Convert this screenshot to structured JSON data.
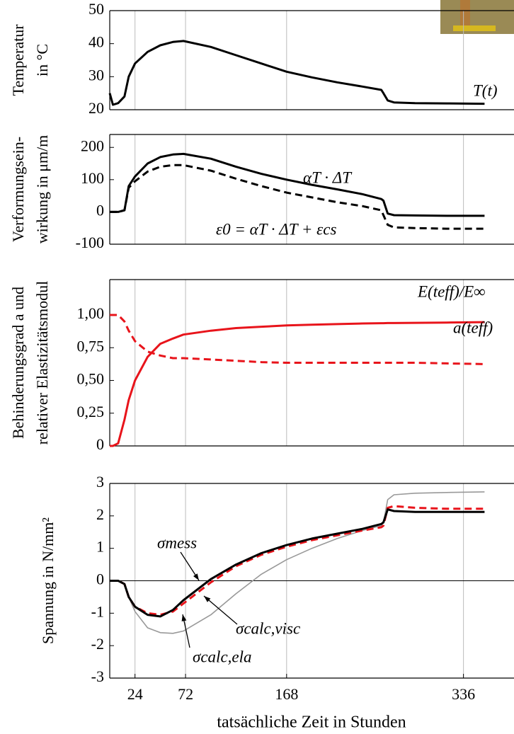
{
  "chart_data": [
    {
      "type": "line",
      "ylabel": [
        "Temperatur",
        "in °C"
      ],
      "x": [
        0,
        3,
        8,
        14,
        18,
        24,
        36,
        48,
        60,
        70,
        96,
        120,
        144,
        168,
        192,
        216,
        240,
        258,
        260,
        264,
        270,
        290,
        320,
        356
      ],
      "xlim": [
        0,
        384
      ],
      "xticks": [
        24,
        72,
        168,
        336
      ],
      "ylim": [
        20,
        50
      ],
      "yticks": [
        20,
        30,
        40,
        50
      ],
      "grid": true,
      "series": [
        {
          "name": "T(t)",
          "color": "#000000",
          "style": "solid",
          "values": [
            25,
            21.5,
            22,
            24,
            30,
            34,
            37.5,
            39.5,
            40.5,
            40.8,
            39,
            36.5,
            34,
            31.5,
            29.8,
            28.3,
            27,
            26,
            25,
            22.8,
            22.2,
            22,
            21.9,
            21.8
          ]
        }
      ]
    },
    {
      "type": "line",
      "ylabel": [
        "Verformungsein-",
        "wirkung in μm/m"
      ],
      "x": [
        0,
        3,
        8,
        14,
        18,
        24,
        36,
        48,
        60,
        70,
        96,
        120,
        144,
        168,
        192,
        216,
        240,
        258,
        260,
        264,
        270,
        290,
        320,
        356
      ],
      "xlim": [
        0,
        384
      ],
      "xticks": [
        24,
        72,
        168,
        336
      ],
      "ylim": [
        -100,
        240
      ],
      "yticks": [
        -100,
        0,
        100,
        200
      ],
      "grid": true,
      "series": [
        {
          "name": "αT · ΔT",
          "color": "#000000",
          "style": "solid",
          "values": [
            0,
            0,
            0,
            5,
            80,
            110,
            150,
            170,
            178,
            180,
            165,
            140,
            118,
            100,
            84,
            70,
            55,
            40,
            35,
            -5,
            -10,
            -11,
            -12,
            -12
          ]
        },
        {
          "name": "ε0 = αT · ΔT + εcs",
          "color": "#000000",
          "style": "dashed",
          "values": [
            0,
            0,
            0,
            5,
            75,
            95,
            125,
            140,
            145,
            145,
            128,
            103,
            80,
            60,
            45,
            30,
            18,
            5,
            -10,
            -40,
            -48,
            -50,
            -52,
            -52
          ]
        }
      ]
    },
    {
      "type": "line",
      "ylabel": [
        "Behinderungsgrad a und",
        "relativer Elastizitätsmodul"
      ],
      "x": [
        0,
        3,
        8,
        14,
        18,
        24,
        36,
        48,
        60,
        70,
        96,
        120,
        144,
        168,
        192,
        216,
        240,
        258,
        260,
        264,
        270,
        290,
        320,
        356
      ],
      "xlim": [
        0,
        384
      ],
      "xticks": [
        24,
        72,
        168,
        336
      ],
      "ylim": [
        0,
        1.27
      ],
      "yticks": [
        0,
        {
          "value": 0.25,
          "label": "0,25"
        },
        {
          "value": 0.5,
          "label": "0,50"
        },
        {
          "value": 0.75,
          "label": "0,75"
        },
        {
          "value": 1,
          "label": "1,00"
        }
      ],
      "grid": true,
      "series": [
        {
          "name": "E(teff)/E∞",
          "color": "#e8141b",
          "style": "solid",
          "values": [
            0,
            0,
            0.02,
            0.2,
            0.35,
            0.5,
            0.68,
            0.78,
            0.82,
            0.85,
            0.88,
            0.9,
            0.91,
            0.92,
            0.925,
            0.93,
            0.935,
            0.937,
            0.937,
            0.938,
            0.938,
            0.94,
            0.942,
            0.945
          ]
        },
        {
          "name": "a(teff)",
          "color": "#e8141b",
          "style": "dashed",
          "values": [
            1,
            1,
            1,
            0.95,
            0.88,
            0.8,
            0.72,
            0.69,
            0.67,
            0.67,
            0.66,
            0.65,
            0.64,
            0.635,
            0.635,
            0.635,
            0.635,
            0.635,
            0.635,
            0.635,
            0.635,
            0.635,
            0.63,
            0.625
          ]
        }
      ]
    },
    {
      "type": "line",
      "ylabel": [
        "Spannung in N/mm²"
      ],
      "xlabel": "tatsächliche Zeit in Stunden",
      "x": [
        0,
        3,
        8,
        14,
        18,
        24,
        36,
        48,
        60,
        70,
        96,
        120,
        144,
        168,
        192,
        216,
        240,
        258,
        260,
        264,
        270,
        290,
        320,
        356
      ],
      "xlim": [
        0,
        384
      ],
      "xticks": [
        24,
        72,
        168,
        336
      ],
      "ylim": [
        -3,
        3
      ],
      "yticks": [
        -3,
        -2,
        -1,
        0,
        1,
        2,
        3
      ],
      "grid": true,
      "zero_line": true,
      "series": [
        {
          "name": "σcalc,ela",
          "color": "#999999",
          "style": "solid",
          "values": [
            0,
            0,
            0,
            -0.1,
            -0.5,
            -0.95,
            -1.45,
            -1.6,
            -1.62,
            -1.55,
            -1.05,
            -0.4,
            0.2,
            0.65,
            1.0,
            1.3,
            1.55,
            1.7,
            1.8,
            2.5,
            2.65,
            2.7,
            2.72,
            2.74
          ]
        },
        {
          "name": "σcalc,visc",
          "color": "#e8141b",
          "style": "dashed",
          "values": [
            0,
            0,
            0,
            -0.1,
            -0.5,
            -0.8,
            -1.0,
            -1.05,
            -0.95,
            -0.7,
            -0.05,
            0.45,
            0.8,
            1.05,
            1.25,
            1.4,
            1.55,
            1.65,
            1.7,
            2.25,
            2.3,
            2.25,
            2.22,
            2.22
          ]
        },
        {
          "name": "σmess",
          "color": "#000000",
          "style": "solid",
          "values": [
            0,
            0,
            0,
            -0.1,
            -0.5,
            -0.8,
            -1.05,
            -1.1,
            -0.9,
            -0.6,
            0.05,
            0.5,
            0.85,
            1.1,
            1.3,
            1.45,
            1.6,
            1.75,
            1.8,
            2.2,
            2.15,
            2.12,
            2.12,
            2.12
          ]
        }
      ]
    }
  ]
}
